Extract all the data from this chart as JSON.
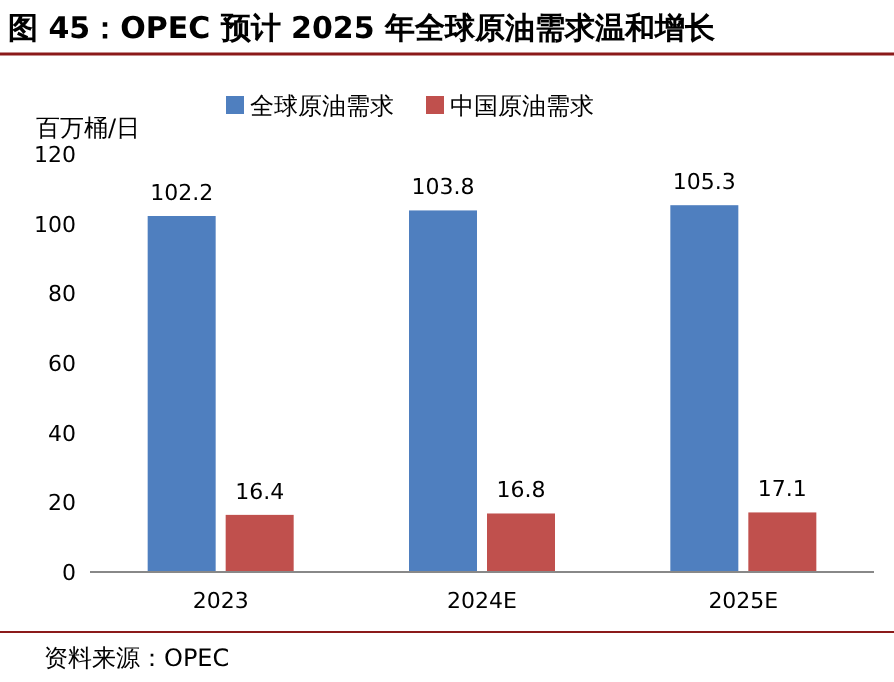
{
  "chart_data": {
    "type": "bar",
    "title": "图 45：OPEC 预计 2025 年全球原油需求温和增长",
    "ylabel": "百万桶/日",
    "categories": [
      "2023",
      "2024E",
      "2025E"
    ],
    "series": [
      {
        "name": "全球原油需求",
        "color": "#4f7fbf",
        "values": [
          102.2,
          103.8,
          105.3
        ]
      },
      {
        "name": "中国原油需求",
        "color": "#c0504d",
        "values": [
          16.4,
          16.8,
          17.1
        ]
      }
    ],
    "ylim": [
      0,
      120
    ],
    "yticks": [
      0,
      20,
      40,
      60,
      80,
      100,
      120
    ],
    "data_labels": true,
    "legend": "top",
    "grid": false,
    "annotations": [
      "资料来源：OPEC"
    ]
  }
}
